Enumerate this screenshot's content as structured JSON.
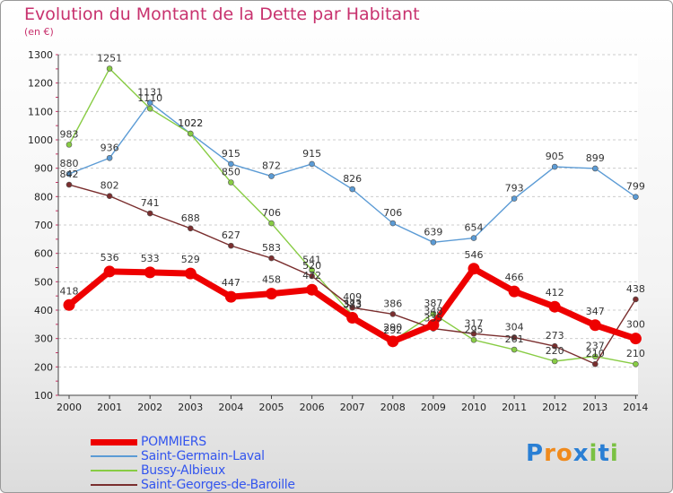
{
  "title": "Evolution du Montant de la Dette par Habitant",
  "subtitle": "(en €)",
  "logo": {
    "text": "Proxiti",
    "letters": [
      "P",
      "r",
      "o",
      "x",
      "i",
      "t",
      "i"
    ],
    "colors": [
      "#2a7fd4",
      "#f08a1c",
      "#f08a1c",
      "#2a7fd4",
      "#7ac143",
      "#2a7fd4",
      "#7ac143"
    ]
  },
  "chart_data": {
    "type": "line",
    "x": [
      "2000",
      "2001",
      "2002",
      "2003",
      "2004",
      "2005",
      "2006",
      "2007",
      "2008",
      "2009",
      "2010",
      "2011",
      "2012",
      "2013",
      "2014"
    ],
    "ylim": [
      100,
      1300
    ],
    "yticks": [
      "100",
      "200",
      "300",
      "400",
      "500",
      "600",
      "700",
      "800",
      "900",
      "1000",
      "1100",
      "1200",
      "1300"
    ],
    "grid": "dashed-horizontal",
    "legend_position": "bottom-left",
    "series": [
      {
        "name": "POMMIERS",
        "color": "#ee0000",
        "bold": true,
        "values": [
          418,
          536,
          533,
          529,
          447,
          458,
          472,
          373,
          290,
          348,
          546,
          466,
          412,
          347,
          300
        ],
        "labels": [
          "418",
          "536",
          "533",
          "529",
          "447",
          "458",
          "472",
          "373",
          "290",
          "348",
          "546",
          "466",
          "412",
          "347",
          "300"
        ]
      },
      {
        "name": "Saint-Germain-Laval",
        "color": "#5b9bd5",
        "bold": false,
        "values": [
          880,
          936,
          1131,
          1022,
          915,
          872,
          915,
          826,
          706,
          639,
          654,
          793,
          905,
          899,
          799
        ],
        "labels": [
          "880",
          "936",
          "1131",
          "1022",
          "915",
          "872",
          "915",
          "826",
          "706",
          "639",
          "654",
          "793",
          "905",
          "899",
          "799"
        ]
      },
      {
        "name": "Bussy-Albieux",
        "color": "#88cc44",
        "bold": false,
        "values": [
          983,
          1251,
          1110,
          1022,
          850,
          706,
          541,
          383,
          292,
          387,
          295,
          261,
          220,
          237,
          210
        ],
        "labels": [
          "983",
          "1251",
          "1110",
          "1022",
          "850",
          "706",
          "541",
          "383",
          "292",
          "387",
          "295",
          "261",
          "220",
          "237",
          "210"
        ]
      },
      {
        "name": "Saint-Georges-de-Baroille",
        "color": "#7a2e2e",
        "bold": false,
        "values": [
          842,
          802,
          741,
          688,
          627,
          583,
          520,
          409,
          386,
          335,
          317,
          304,
          273,
          210,
          438
        ],
        "labels": [
          "842",
          "802",
          "741",
          "688",
          "627",
          "583",
          "520",
          "409",
          "386",
          "335",
          "317",
          "304",
          "273",
          "210",
          "438"
        ]
      }
    ]
  }
}
